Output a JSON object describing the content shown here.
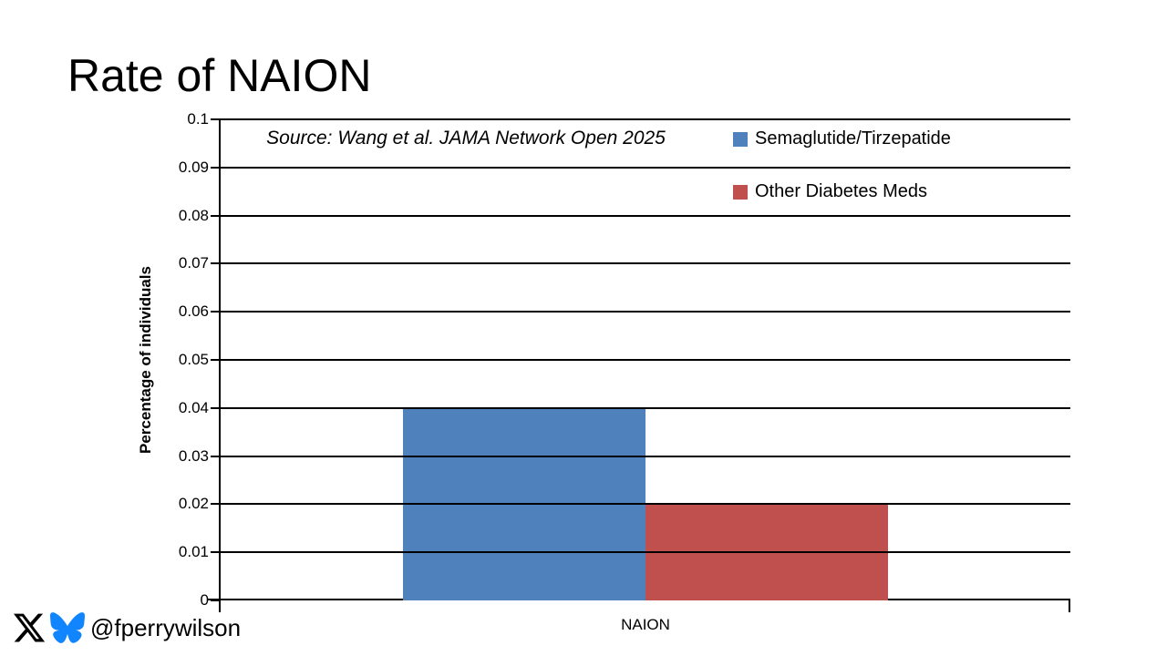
{
  "slide": {
    "title": "Rate of NAION",
    "source_note": "Source: Wang et al. JAMA Network Open 2025",
    "footer": {
      "handle": "@fperrywilson",
      "icons": [
        "x-logo",
        "bluesky-butterfly"
      ]
    }
  },
  "chart_data": {
    "type": "bar",
    "title": "",
    "categories": [
      "NAION"
    ],
    "series": [
      {
        "name": "Semaglutide/Tirzepatide",
        "values": [
          0.04
        ],
        "color": "#4F81BD"
      },
      {
        "name": "Other Diabetes Meds",
        "values": [
          0.02
        ],
        "color": "#C0504D"
      }
    ],
    "xlabel": "",
    "ylabel": "Percentage of individuals",
    "ylim": [
      0,
      0.1
    ],
    "ytick_step": 0.01,
    "yticks": [
      "0.1",
      "0.09",
      "0.08",
      "0.07",
      "0.06",
      "0.05",
      "0.04",
      "0.03",
      "0.02",
      "0.01",
      "0"
    ],
    "grid": true,
    "legend_position": "top-right",
    "gap_ratio": 1.5
  },
  "colors": {
    "background": "#ffffff",
    "text": "#000000",
    "axis": "#000000",
    "gridline": "#000000",
    "series_blue": "#4F81BD",
    "series_red": "#C0504D",
    "bluesky_blue": "#1185FE",
    "x_logo_black": "#000000"
  }
}
